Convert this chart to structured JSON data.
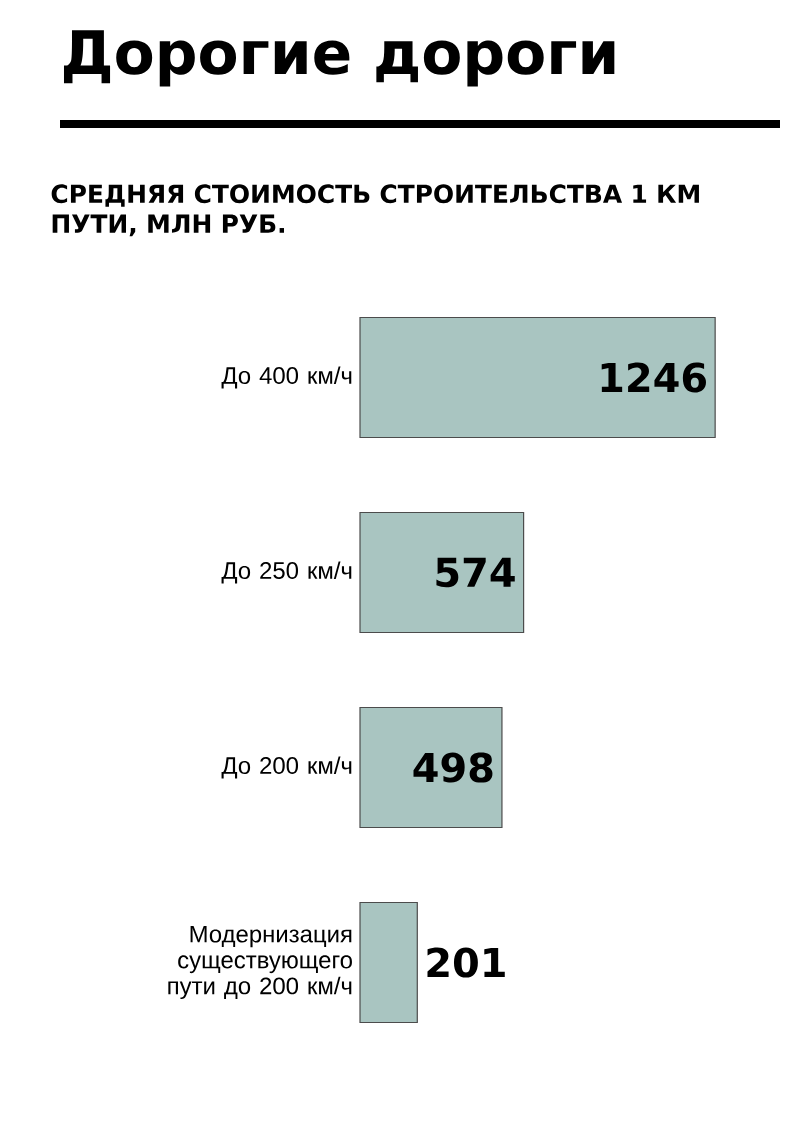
{
  "chart_data": {
    "type": "bar",
    "orientation": "horizontal",
    "title": "Дорогие дороги",
    "subtitle": "СРЕДНЯЯ СТОИМОСТЬ СТРОИТЕЛЬСТВА 1 КМ ПУТИ, МЛН РУБ.",
    "categories": [
      "До 400 км/ч",
      "До 250 км/ч",
      "До 200 км/ч",
      "Модернизация существующего пути до 200 км/ч"
    ],
    "values": [
      1246,
      574,
      498,
      201
    ],
    "color": "#a9c5c1",
    "data_labels": true
  }
}
